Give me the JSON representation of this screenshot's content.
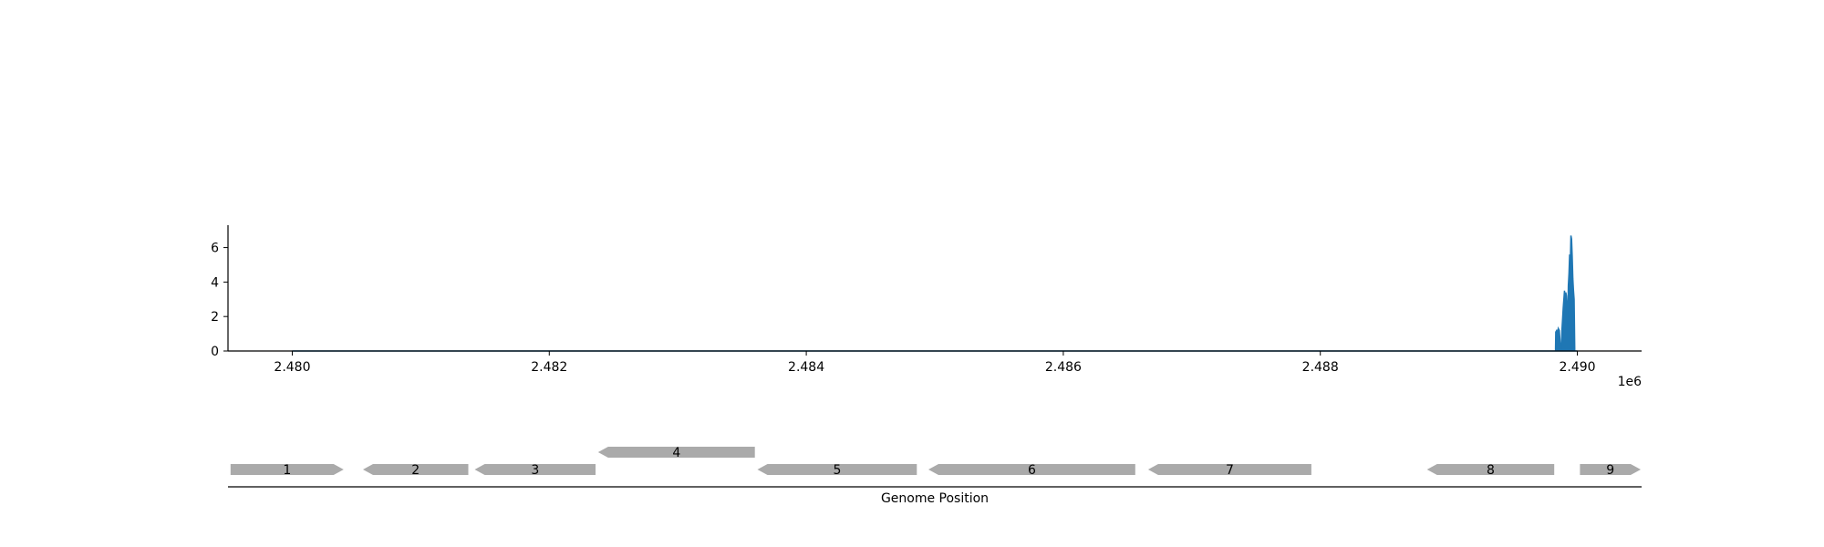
{
  "chart_data": [
    {
      "type": "area",
      "title": "",
      "xlabel": "",
      "ylabel": "",
      "x_offset_label": "1e6",
      "xlim": [
        2479500,
        2490500
      ],
      "ylim": [
        0,
        7.3
      ],
      "x_ticks": [
        2480000,
        2482000,
        2484000,
        2486000,
        2488000,
        2490000
      ],
      "x_tick_labels": [
        "2.480",
        "2.482",
        "2.484",
        "2.486",
        "2.488",
        "2.490"
      ],
      "y_ticks": [
        0,
        2,
        4,
        6
      ],
      "y_tick_labels": [
        "0",
        "2",
        "4",
        "6"
      ],
      "grid": false,
      "color": "#1f77b4",
      "series": [
        {
          "x": [
            2480000,
            2489800,
            2489830,
            2489832,
            2489840,
            2489850,
            2489852,
            2489860,
            2489870,
            2489875,
            2489880,
            2489890,
            2489895,
            2489900,
            2489905,
            2489910,
            2489915,
            2489920,
            2489925,
            2489930,
            2489935,
            2489940,
            2489945,
            2489950,
            2489955,
            2489960,
            2489965,
            2489970,
            2489975,
            2489980,
            2489985,
            2489990,
            2489995,
            2490000
          ],
          "values": [
            0,
            0,
            0,
            1.1,
            1.2,
            1.0,
            1.3,
            1.2,
            0,
            0,
            1.2,
            2.5,
            3.0,
            3.5,
            2.8,
            3.4,
            3.2,
            2.6,
            1.4,
            3.8,
            4.5,
            5.6,
            5.0,
            6.7,
            6.5,
            5.5,
            4.2,
            3.5,
            3.0,
            0,
            0,
            0,
            0,
            0
          ]
        }
      ]
    },
    {
      "type": "gene-track",
      "xlabel": "Genome Position",
      "color": "#aaaaaa",
      "genes": [
        {
          "label": "1",
          "start": 2479520,
          "end": 2480400,
          "strand": "+",
          "row": 0
        },
        {
          "label": "2",
          "start": 2480550,
          "end": 2481370,
          "strand": "-",
          "row": 0
        },
        {
          "label": "3",
          "start": 2481420,
          "end": 2482360,
          "strand": "-",
          "row": 0
        },
        {
          "label": "4",
          "start": 2482380,
          "end": 2483600,
          "strand": "-",
          "row": 1
        },
        {
          "label": "5",
          "start": 2483620,
          "end": 2484860,
          "strand": "-",
          "row": 0
        },
        {
          "label": "6",
          "start": 2484950,
          "end": 2486560,
          "strand": "-",
          "row": 0
        },
        {
          "label": "7",
          "start": 2486660,
          "end": 2487930,
          "strand": "-",
          "row": 0
        },
        {
          "label": "8",
          "start": 2488830,
          "end": 2489820,
          "strand": "-",
          "row": 0
        },
        {
          "label": "9",
          "start": 2490020,
          "end": 2490500,
          "strand": "+",
          "row": 0
        }
      ]
    }
  ]
}
